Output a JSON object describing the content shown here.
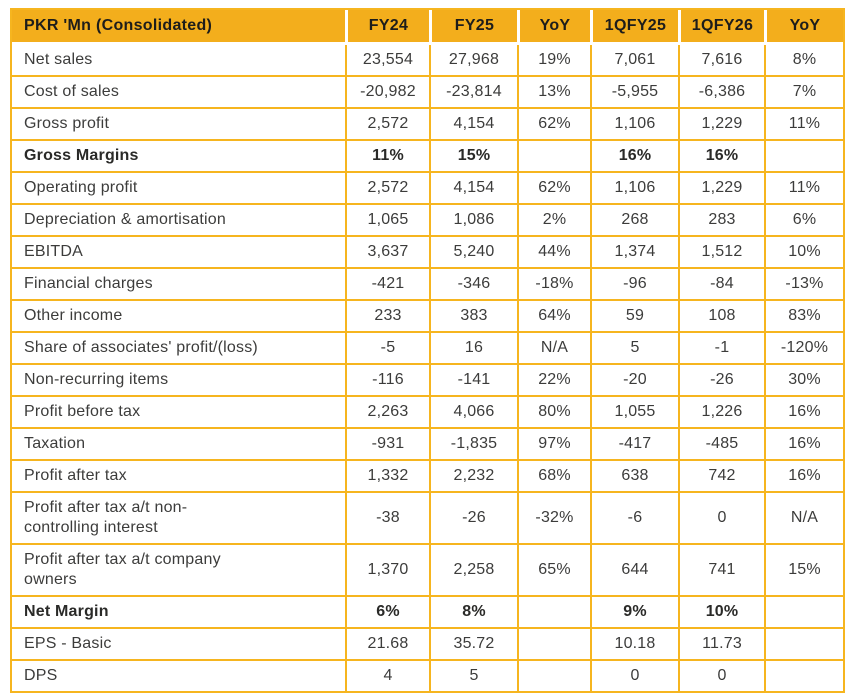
{
  "colors": {
    "header_bg": "#F3AE1C",
    "grid_border": "#F6B51F",
    "header_text": "#1D1D1B",
    "body_text": "#3C3C3B"
  },
  "table": {
    "columns": [
      "PKR 'Mn (Consolidated)",
      "FY24",
      "FY25",
      "YoY",
      "1QFY25",
      "1QFY26",
      "YoY"
    ],
    "rows": [
      {
        "label": "Net sales",
        "bold": false,
        "values": [
          "23,554",
          "27,968",
          "19%",
          "7,061",
          "7,616",
          "8%"
        ]
      },
      {
        "label": "Cost of sales",
        "bold": false,
        "values": [
          "-20,982",
          "-23,814",
          "13%",
          "-5,955",
          "-6,386",
          "7%"
        ]
      },
      {
        "label": "Gross profit",
        "bold": false,
        "values": [
          "2,572",
          "4,154",
          "62%",
          "1,106",
          "1,229",
          "11%"
        ]
      },
      {
        "label": "Gross Margins",
        "bold": true,
        "values": [
          "11%",
          "15%",
          "",
          "16%",
          "16%",
          ""
        ]
      },
      {
        "label": "Operating profit",
        "bold": false,
        "values": [
          "2,572",
          "4,154",
          "62%",
          "1,106",
          "1,229",
          "11%"
        ]
      },
      {
        "label": "Depreciation & amortisation",
        "bold": false,
        "values": [
          "1,065",
          "1,086",
          "2%",
          "268",
          "283",
          "6%"
        ]
      },
      {
        "label": "EBITDA",
        "bold": false,
        "values": [
          "3,637",
          "5,240",
          "44%",
          "1,374",
          "1,512",
          "10%"
        ]
      },
      {
        "label": "Financial charges",
        "bold": false,
        "values": [
          "-421",
          "-346",
          "-18%",
          "-96",
          "-84",
          "-13%"
        ]
      },
      {
        "label": "Other income",
        "bold": false,
        "values": [
          "233",
          "383",
          "64%",
          "59",
          "108",
          "83%"
        ]
      },
      {
        "label": "Share of associates' profit/(loss)",
        "bold": false,
        "values": [
          "-5",
          "16",
          "N/A",
          "5",
          "-1",
          "-120%"
        ]
      },
      {
        "label": "Non-recurring items",
        "bold": false,
        "values": [
          "-116",
          "-141",
          "22%",
          "-20",
          "-26",
          "30%"
        ]
      },
      {
        "label": "Profit before tax",
        "bold": false,
        "values": [
          "2,263",
          "4,066",
          "80%",
          "1,055",
          "1,226",
          "16%"
        ]
      },
      {
        "label": "Taxation",
        "bold": false,
        "values": [
          "-931",
          "-1,835",
          "97%",
          "-417",
          "-485",
          "16%"
        ]
      },
      {
        "label": "Profit after tax",
        "bold": false,
        "values": [
          "1,332",
          "2,232",
          "68%",
          "638",
          "742",
          "16%"
        ]
      },
      {
        "label": "Profit after tax a/t non-controlling interest",
        "bold": false,
        "values": [
          "-38",
          "-26",
          "-32%",
          "-6",
          "0",
          "N/A"
        ]
      },
      {
        "label": "Profit after tax a/t company owners",
        "bold": false,
        "values": [
          "1,370",
          "2,258",
          "65%",
          "644",
          "741",
          "15%"
        ]
      },
      {
        "label": "Net Margin",
        "bold": true,
        "values": [
          "6%",
          "8%",
          "",
          "9%",
          "10%",
          ""
        ]
      },
      {
        "label": "EPS - Basic",
        "bold": false,
        "values": [
          "21.68",
          "35.72",
          "",
          "10.18",
          "11.73",
          ""
        ]
      },
      {
        "label": "DPS",
        "bold": false,
        "values": [
          "4",
          "5",
          "",
          "0",
          "0",
          ""
        ]
      }
    ]
  }
}
